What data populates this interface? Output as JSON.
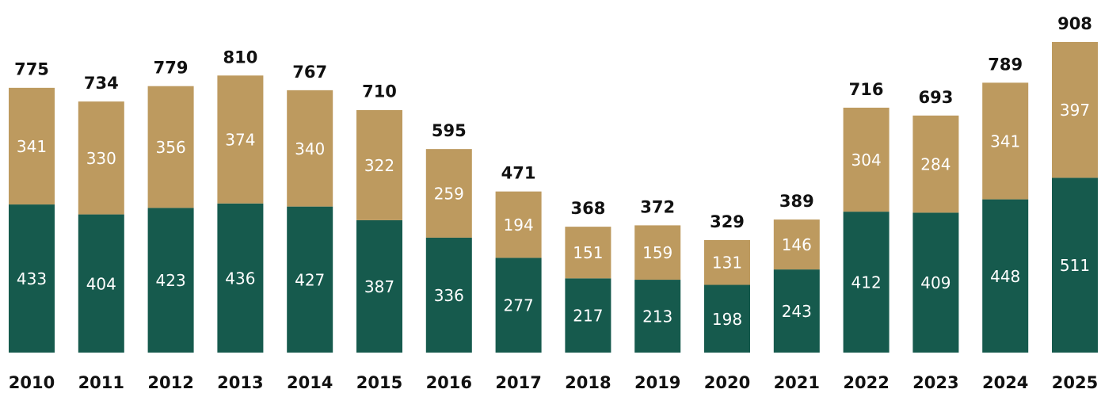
{
  "chart_data": {
    "type": "stacked-bar",
    "categories": [
      "2010",
      "2011",
      "2012",
      "2013",
      "2014",
      "2015",
      "2016",
      "2017",
      "2018",
      "2019",
      "2020",
      "2021",
      "2022",
      "2023",
      "2024",
      "2025"
    ],
    "series": [
      {
        "color": "#165a4d",
        "values": [
          433,
          404,
          423,
          436,
          427,
          387,
          336,
          277,
          217,
          213,
          198,
          243,
          412,
          409,
          448,
          511
        ]
      },
      {
        "color": "#bd9a5f",
        "values": [
          341,
          330,
          356,
          374,
          340,
          322,
          259,
          194,
          151,
          159,
          131,
          146,
          304,
          284,
          341,
          397
        ]
      }
    ],
    "totals": [
      775,
      734,
      779,
      810,
      767,
      710,
      595,
      471,
      368,
      372,
      329,
      389,
      716,
      693,
      789,
      908
    ]
  }
}
